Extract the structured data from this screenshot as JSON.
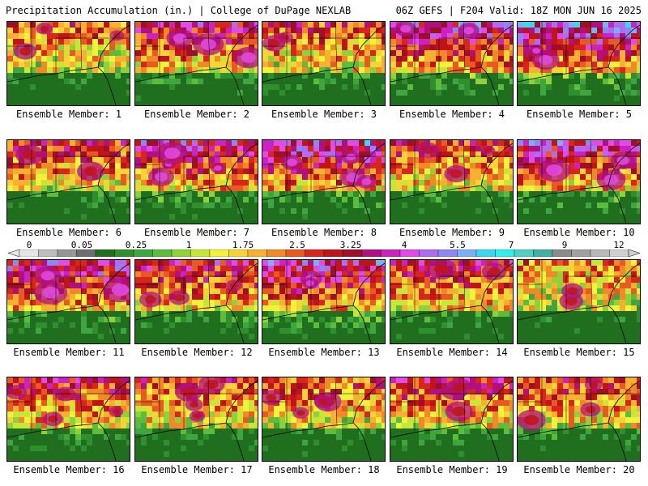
{
  "header": {
    "left_title": "Precipitation Accumulation (in.) | College of DuPage NEXLAB",
    "right_title": "06Z GEFS | F204 Valid: 18Z MON JUN 16 2025"
  },
  "legend": {
    "labels": [
      "0",
      "0.05",
      "0.25",
      "1",
      "1.75",
      "2.5",
      "3.25",
      "4",
      "5.5",
      "7",
      "9",
      "12"
    ],
    "colors": [
      "#e6e6e6",
      "#bdbdbd",
      "#969696",
      "#6e6e6e",
      "#1f6f1f",
      "#2f8f2f",
      "#3fa53f",
      "#5cbd3c",
      "#8fd13a",
      "#c8e63a",
      "#f2f23a",
      "#f7d335",
      "#f7b030",
      "#f08a28",
      "#e85a22",
      "#d8261c",
      "#c0141a",
      "#9e0f2a",
      "#b01080",
      "#cc22c2",
      "#e04ae8",
      "#b06cf0",
      "#8e86f2",
      "#7ab0f4",
      "#3ad6f2",
      "#2ff0ec",
      "#4fd0c6",
      "#3fb0a4",
      "#8a8a8a",
      "#a0a0a0",
      "#b8b8b8",
      "#d0d0d0"
    ]
  },
  "members": [
    {
      "label": "Ensemble Member: 1",
      "intensity": 0.45
    },
    {
      "label": "Ensemble Member: 2",
      "intensity": 0.62
    },
    {
      "label": "Ensemble Member: 3",
      "intensity": 0.5
    },
    {
      "label": "Ensemble Member: 4",
      "intensity": 0.72
    },
    {
      "label": "Ensemble Member: 5",
      "intensity": 0.78
    },
    {
      "label": "Ensemble Member: 6",
      "intensity": 0.55
    },
    {
      "label": "Ensemble Member: 7",
      "intensity": 0.66
    },
    {
      "label": "Ensemble Member: 8",
      "intensity": 0.74
    },
    {
      "label": "Ensemble Member: 9",
      "intensity": 0.52
    },
    {
      "label": "Ensemble Member: 10",
      "intensity": 0.7
    },
    {
      "label": "Ensemble Member: 11",
      "intensity": 0.68
    },
    {
      "label": "Ensemble Member: 12",
      "intensity": 0.6
    },
    {
      "label": "Ensemble Member: 13",
      "intensity": 0.72
    },
    {
      "label": "Ensemble Member: 14",
      "intensity": 0.58
    },
    {
      "label": "Ensemble Member: 15",
      "intensity": 0.4
    },
    {
      "label": "Ensemble Member: 16",
      "intensity": 0.55
    },
    {
      "label": "Ensemble Member: 17",
      "intensity": 0.5
    },
    {
      "label": "Ensemble Member: 18",
      "intensity": 0.48
    },
    {
      "label": "Ensemble Member: 19",
      "intensity": 0.56
    },
    {
      "label": "Ensemble Member: 20",
      "intensity": 0.52
    }
  ]
}
